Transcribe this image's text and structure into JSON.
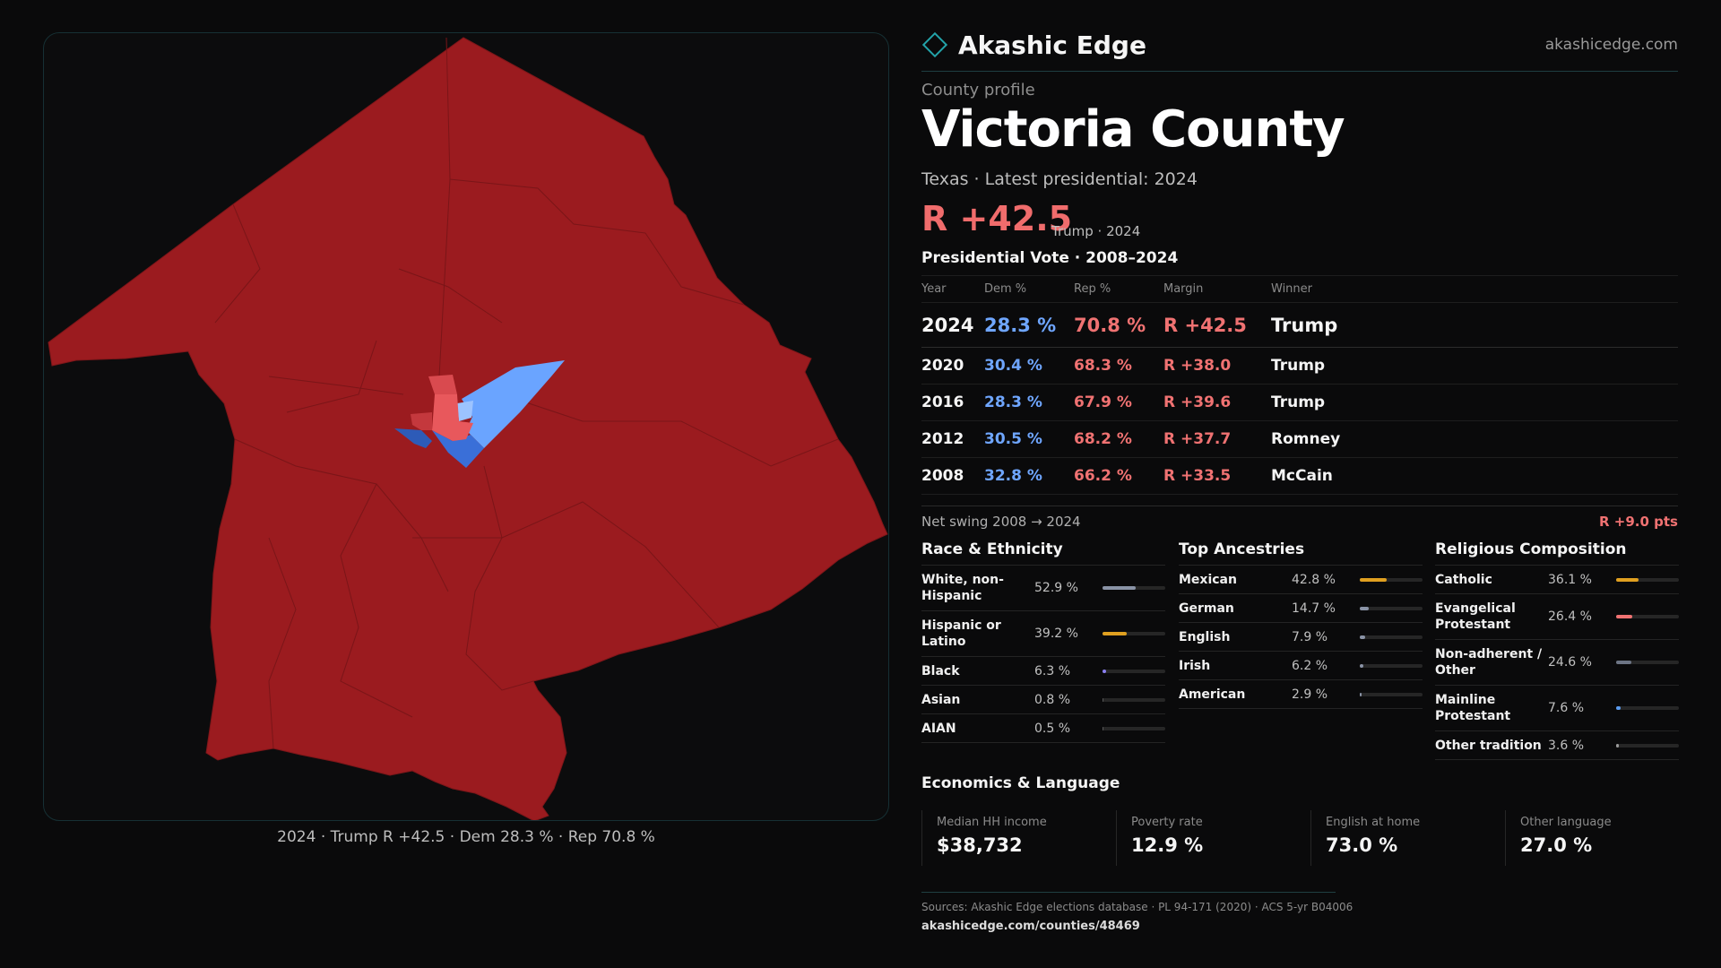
{
  "brand": {
    "name": "Akashic Edge",
    "url": "akashicedge.com"
  },
  "profile": {
    "eyebrow": "County profile",
    "county": "Victoria County",
    "subtitle": "Texas · Latest presidential: 2024",
    "margin": "R +42.5",
    "margin_note": "Trump · 2024"
  },
  "map": {
    "caption": "2024 · Trump R +42.5 · Dem 28.3 % · Rep 70.8 %",
    "colors": {
      "rep_strong": "#9b1b1f",
      "rep_light": "#e8585c",
      "dem_light": "#6aa4ff",
      "dem_strong": "#3a6fd8"
    }
  },
  "votes": {
    "title": "Presidential Vote · 2008–2024",
    "headers": [
      "Year",
      "Dem %",
      "Rep %",
      "Margin",
      "Winner"
    ],
    "rows": [
      [
        "2024",
        "28.3 %",
        "70.8 %",
        "R +42.5",
        "Trump"
      ],
      [
        "2020",
        "30.4 %",
        "68.3 %",
        "R +38.0",
        "Trump"
      ],
      [
        "2016",
        "28.3 %",
        "67.9 %",
        "R +39.6",
        "Trump"
      ],
      [
        "2012",
        "30.5 %",
        "68.2 %",
        "R +37.7",
        "Romney"
      ],
      [
        "2008",
        "32.8 %",
        "66.2 %",
        "R +33.5",
        "McCain"
      ]
    ],
    "swing_label": "Net swing 2008 → 2024",
    "swing_value": "R +9.0 pts"
  },
  "demographics": [
    {
      "title": "Race & Ethnicity",
      "rows": [
        {
          "label": "White, non-Hispanic",
          "pct": "52.9 %",
          "value": 52.9,
          "color": "#8a93a6"
        },
        {
          "label": "Hispanic or Latino",
          "pct": "39.2 %",
          "value": 39.2,
          "color": "#e0a020"
        },
        {
          "label": "Black",
          "pct": "6.3 %",
          "value": 6.3,
          "color": "#8a7ff0"
        },
        {
          "label": "Asian",
          "pct": "0.8 %",
          "value": 0.8,
          "color": "#5a5a5a"
        },
        {
          "label": "AIAN",
          "pct": "0.5 %",
          "value": 0.5,
          "color": "#5a5a5a"
        }
      ]
    },
    {
      "title": "Top Ancestries",
      "rows": [
        {
          "label": "Mexican",
          "pct": "42.8 %",
          "value": 42.8,
          "color": "#e0a020"
        },
        {
          "label": "German",
          "pct": "14.7 %",
          "value": 14.7,
          "color": "#8a93a6"
        },
        {
          "label": "English",
          "pct": "7.9 %",
          "value": 7.9,
          "color": "#8a93a6"
        },
        {
          "label": "Irish",
          "pct": "6.2 %",
          "value": 6.2,
          "color": "#8a93a6"
        },
        {
          "label": "American",
          "pct": "2.9 %",
          "value": 2.9,
          "color": "#8a93a6"
        }
      ]
    },
    {
      "title": "Religious Composition",
      "rows": [
        {
          "label": "Catholic",
          "pct": "36.1 %",
          "value": 36.1,
          "color": "#e0a020"
        },
        {
          "label": "Evangelical Protestant",
          "pct": "26.4 %",
          "value": 26.4,
          "color": "#f07272"
        },
        {
          "label": "Non-adherent / Other",
          "pct": "24.6 %",
          "value": 24.6,
          "color": "#6d7585"
        },
        {
          "label": "Mainline Protestant",
          "pct": "7.6 %",
          "value": 7.6,
          "color": "#5a9cf0"
        },
        {
          "label": "Other tradition",
          "pct": "3.6 %",
          "value": 3.6,
          "color": "#9a9a9a"
        }
      ]
    }
  ],
  "economics": {
    "title": "Economics & Language",
    "items": [
      {
        "label": "Median HH income",
        "value": "$38,732"
      },
      {
        "label": "Poverty rate",
        "value": "12.9 %"
      },
      {
        "label": "English at home",
        "value": "73.0 %"
      },
      {
        "label": "Other language",
        "value": "27.0 %"
      }
    ]
  },
  "footer": {
    "sources": "Sources: Akashic Edge elections database · PL 94-171 (2020) · ACS 5-yr B04006",
    "url": "akashicedge.com/counties/48469"
  }
}
